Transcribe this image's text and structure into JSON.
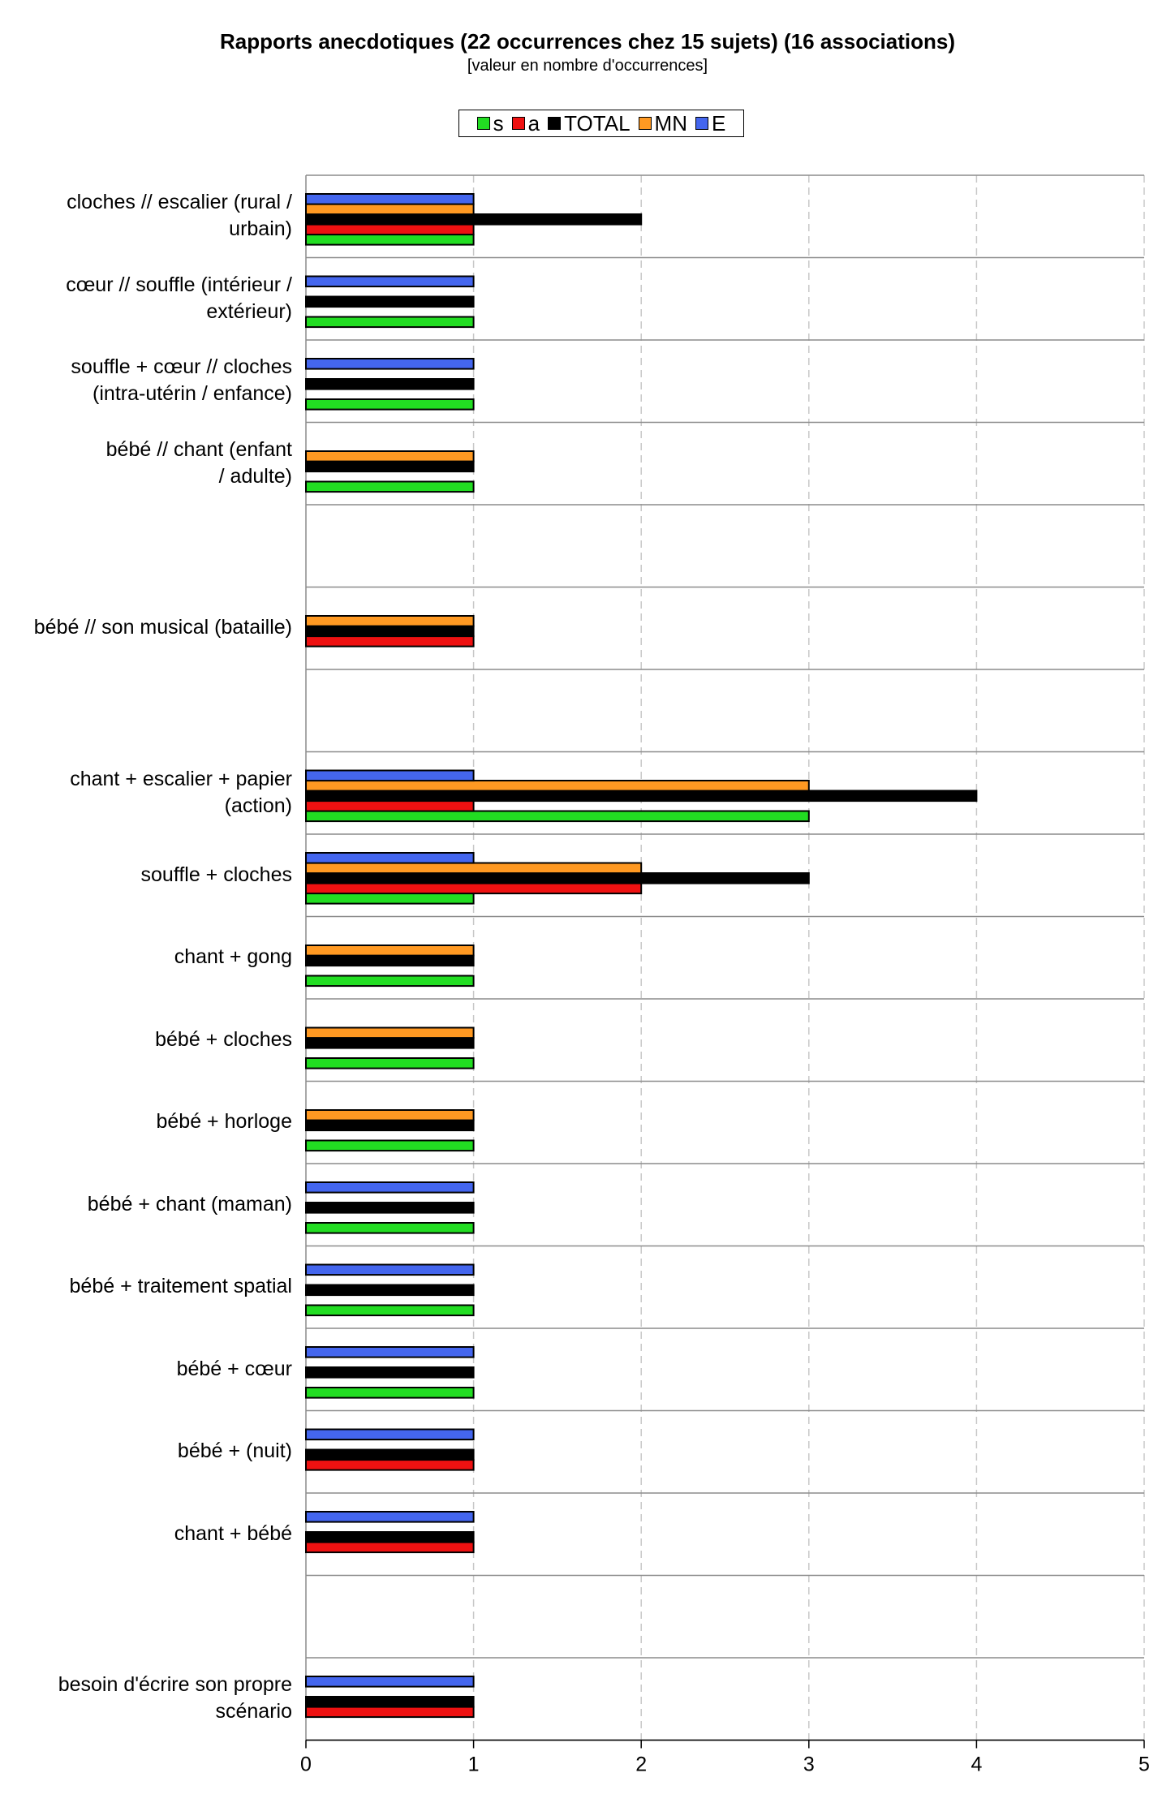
{
  "chart_data": {
    "type": "bar",
    "orientation": "horizontal",
    "title": "Rapports anecdotiques (22 occurrences chez 15 sujets) (16 associations)",
    "subtitle": "[valeur en nombre d'occurrences]",
    "xlabel": "",
    "ylabel": "",
    "xlim": [
      0,
      5
    ],
    "xticks": [
      "0",
      "1",
      "2",
      "3",
      "4",
      "5"
    ],
    "grid": "vertical dashed",
    "legend_position": "top-center",
    "categories": [
      "cloches // escalier (rural / urbain)",
      "cœur // souffle (intérieur / extérieur)",
      "souffle + cœur // cloches (intra-utérin / enfance)",
      "bébé // chant (enfant / adulte)",
      "",
      "bébé // son musical (bataille)",
      "",
      "chant + escalier + papier (action)",
      "souffle + cloches",
      "chant + gong",
      "bébé + cloches",
      "bébé + horloge",
      "bébé + chant (maman)",
      "bébé + traitement spatial",
      "bébé + cœur",
      "bébé + (nuit)",
      "chant + bébé",
      "",
      "besoin d'écrire son propre scénario"
    ],
    "category_lines": [
      [
        "cloches // escalier (rural /",
        "urbain)"
      ],
      [
        "cœur // souffle (intérieur /",
        "extérieur)"
      ],
      [
        "souffle + cœur // cloches",
        "(intra-utérin / enfance)"
      ],
      [
        "bébé // chant (enfant",
        "/ adulte)"
      ],
      [],
      [
        "bébé // son musical (bataille)"
      ],
      [],
      [
        "chant + escalier + papier",
        "(action)"
      ],
      [
        "souffle + cloches"
      ],
      [
        "chant + gong"
      ],
      [
        "bébé + cloches"
      ],
      [
        "bébé + horloge"
      ],
      [
        "bébé + chant (maman)"
      ],
      [
        "bébé + traitement spatial"
      ],
      [
        "bébé + cœur"
      ],
      [
        "bébé + (nuit)"
      ],
      [
        "chant + bébé"
      ],
      [],
      [
        "besoin d'écrire son propre",
        "scénario"
      ]
    ],
    "series": [
      {
        "name": "s",
        "color": "#22dd22",
        "values": [
          1,
          1,
          1,
          1,
          0,
          0,
          0,
          3,
          1,
          1,
          1,
          1,
          1,
          1,
          1,
          0,
          0,
          0,
          0
        ]
      },
      {
        "name": "a",
        "color": "#ee1111",
        "values": [
          1,
          0,
          0,
          0,
          0,
          1,
          0,
          1,
          2,
          0,
          0,
          0,
          0,
          0,
          0,
          1,
          1,
          0,
          1
        ]
      },
      {
        "name": "TOTAL",
        "color": "#000000",
        "values": [
          2,
          1,
          1,
          1,
          0,
          1,
          0,
          4,
          3,
          1,
          1,
          1,
          1,
          1,
          1,
          1,
          1,
          0,
          1
        ]
      },
      {
        "name": "MN",
        "color": "#ff9922",
        "values": [
          1,
          0,
          0,
          1,
          0,
          1,
          0,
          3,
          2,
          1,
          1,
          1,
          0,
          0,
          0,
          0,
          0,
          0,
          0
        ]
      },
      {
        "name": "E",
        "color": "#4466ee",
        "values": [
          1,
          1,
          1,
          0,
          0,
          0,
          0,
          1,
          1,
          0,
          0,
          0,
          1,
          1,
          1,
          1,
          1,
          0,
          1
        ]
      }
    ]
  }
}
